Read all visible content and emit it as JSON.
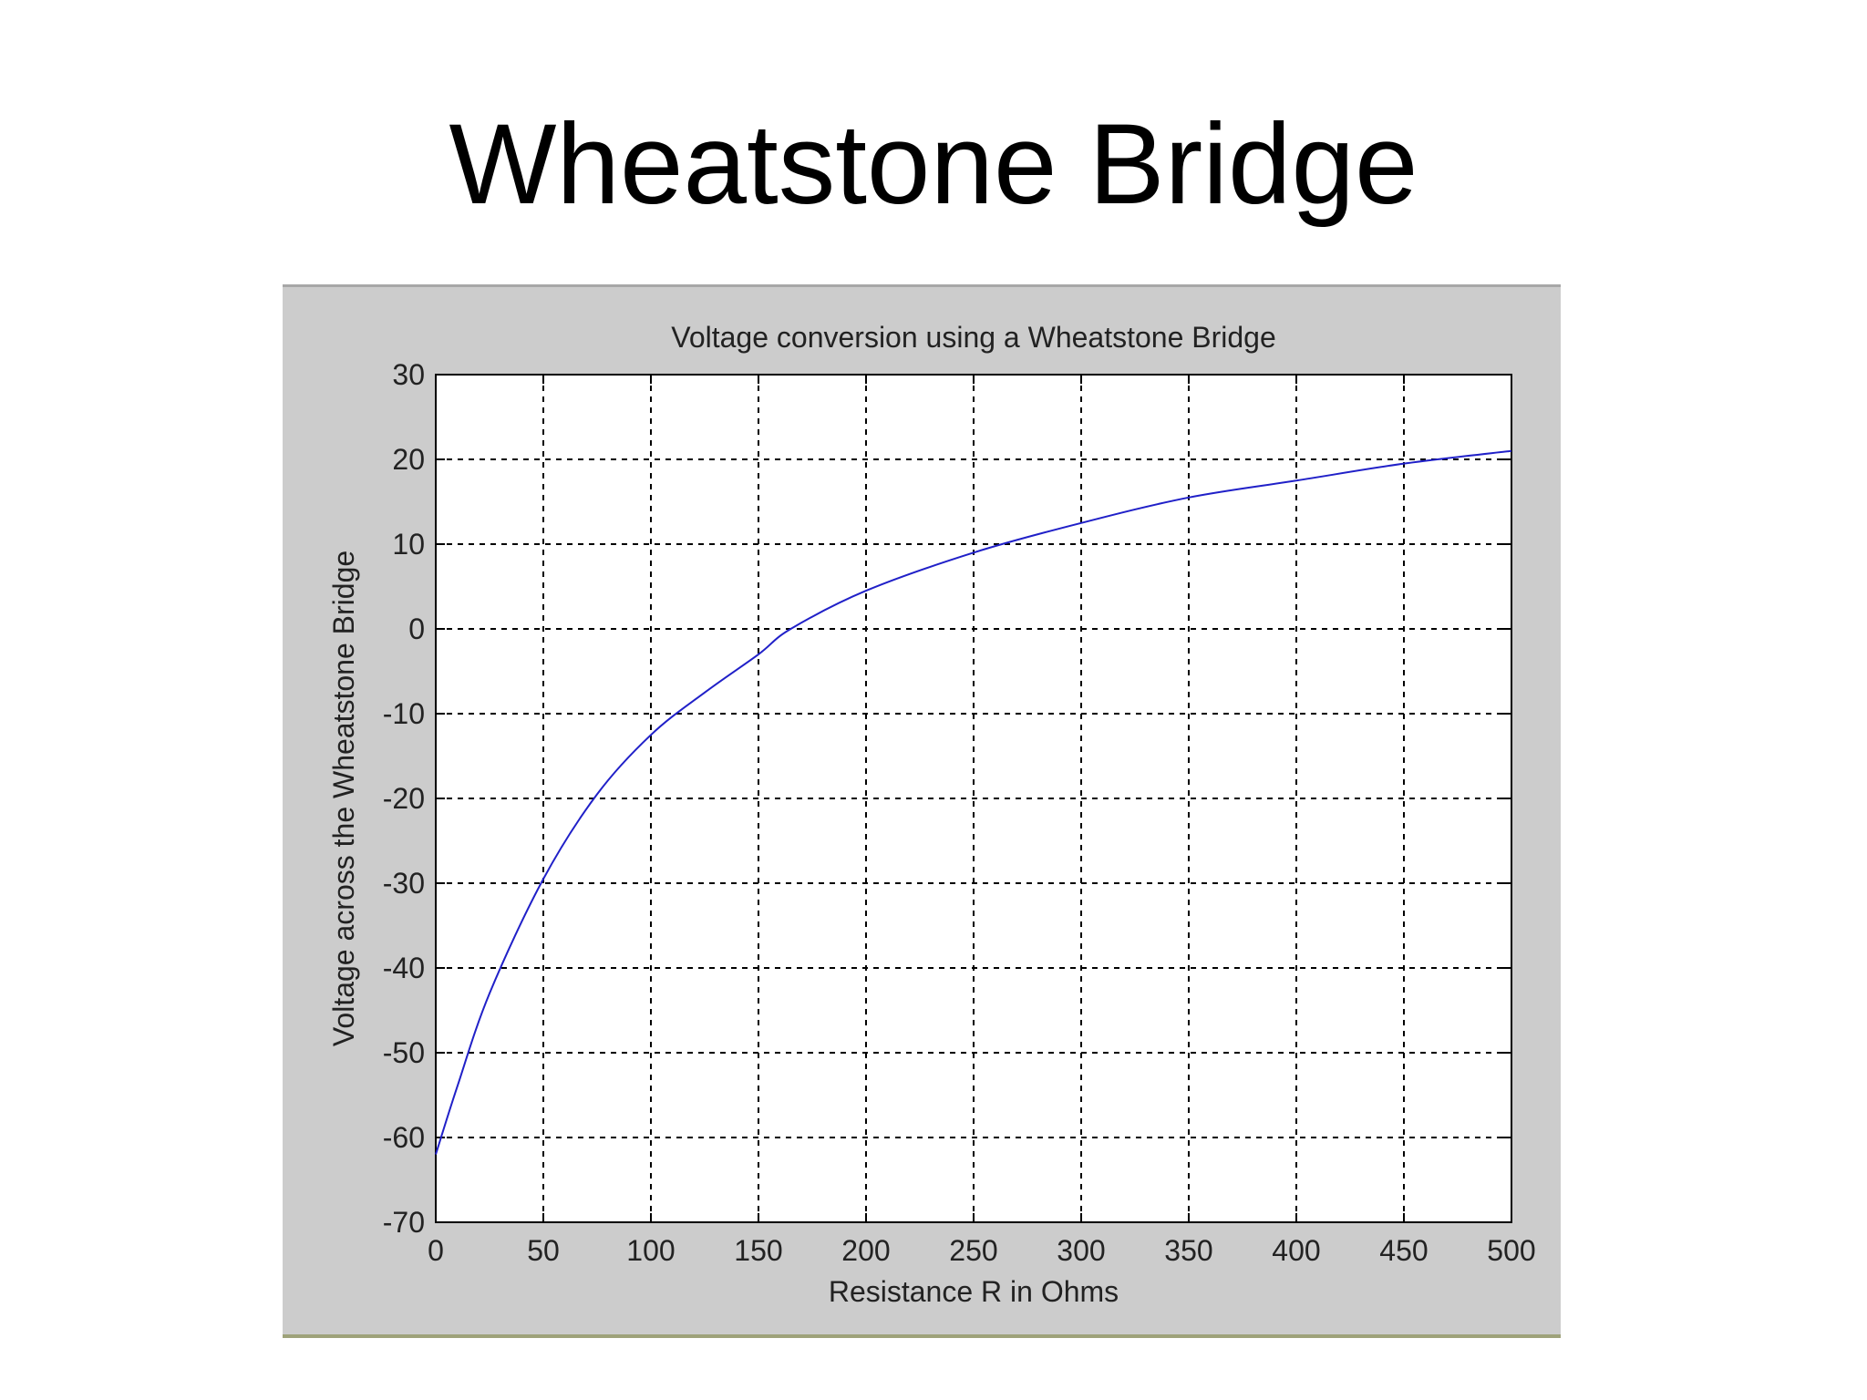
{
  "slide": {
    "title": "Wheatstone Bridge"
  },
  "colors": {
    "panel_background": "#cccccc",
    "plot_background": "#ffffff",
    "series_line": "#2020c8",
    "grid": "#000000"
  },
  "chart_data": {
    "type": "line",
    "title": "Voltage conversion using a Wheatstone Bridge",
    "xlabel": "Resistance R in Ohms",
    "ylabel": "Voltage across the Wheatstone Bridge",
    "xlim": [
      0,
      500
    ],
    "ylim": [
      -70,
      30
    ],
    "grid": true,
    "grid_style": "dashed",
    "legend": "none",
    "xticks": [
      0,
      50,
      100,
      150,
      200,
      250,
      300,
      350,
      400,
      450,
      500
    ],
    "yticks": [
      -70,
      -60,
      -50,
      -40,
      -30,
      -20,
      -10,
      0,
      10,
      20,
      30
    ],
    "series": [
      {
        "x": [
          0,
          10,
          25,
          50,
          75,
          100,
          125,
          150,
          165,
          200,
          250,
          300,
          350,
          400,
          450,
          500
        ],
        "y": [
          -62,
          -54,
          -43,
          -29.5,
          -19.5,
          -12.5,
          -7.5,
          -3,
          0,
          4.5,
          9,
          12.5,
          15.5,
          17.5,
          19.5,
          21
        ]
      }
    ]
  }
}
